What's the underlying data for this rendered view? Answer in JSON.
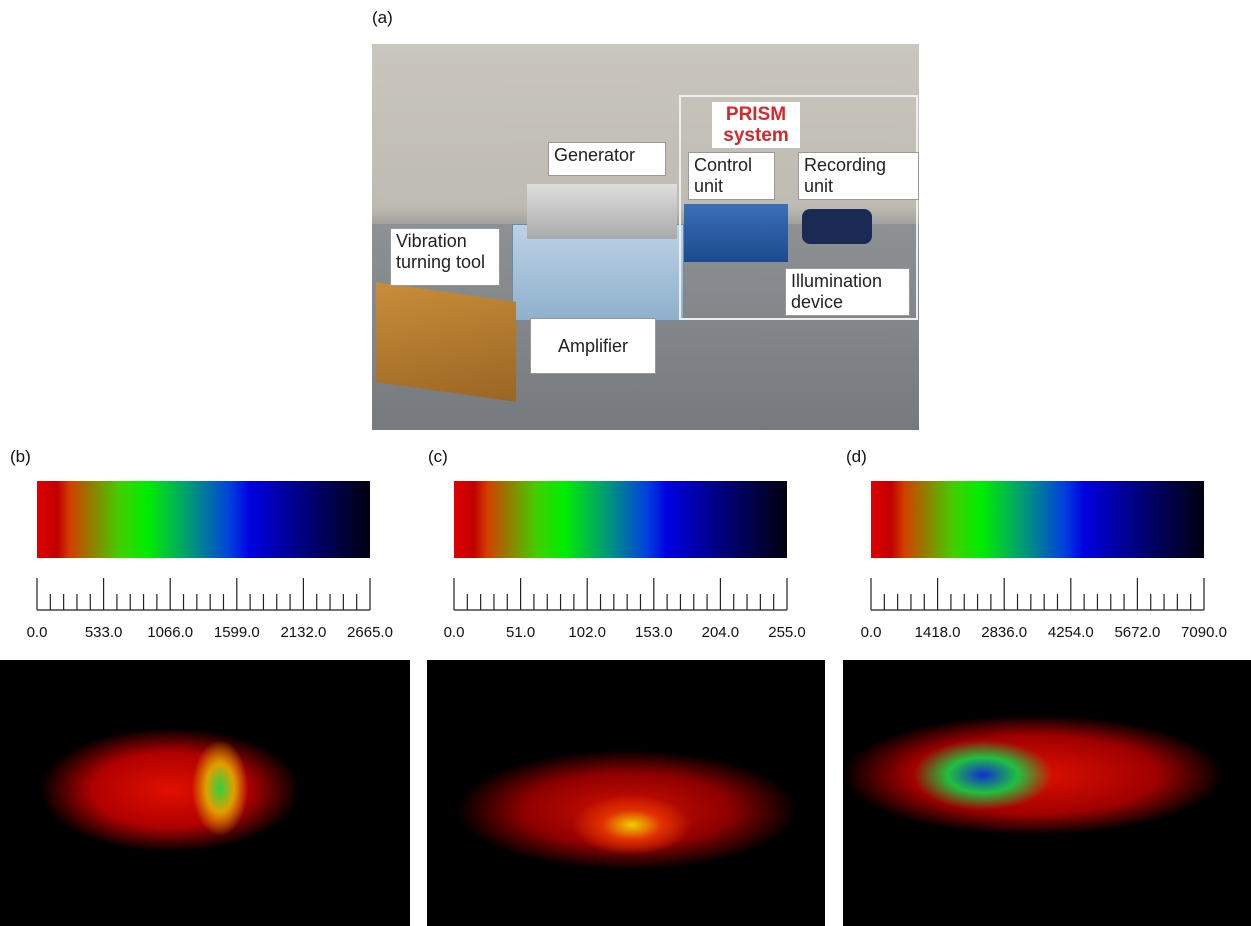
{
  "figure": {
    "panel_a": {
      "label": "(a)",
      "annotations": {
        "generator": "Generator",
        "vibration_tool": "Vibration turning tool",
        "amplifier": "Amplifier",
        "prism": "PRISM system",
        "control_unit": "Control unit",
        "recording_unit": "Recording unit",
        "illumination_device": "Illumination device"
      }
    },
    "panels": [
      {
        "label": "(b)",
        "scale_labels": [
          "0.0",
          "533.0",
          "1066.0",
          "1599.0",
          "2132.0",
          "2665.0"
        ]
      },
      {
        "label": "(c)",
        "scale_labels": [
          "0.0",
          "51.0",
          "102.0",
          "153.0",
          "204.0",
          "255.0"
        ]
      },
      {
        "label": "(d)",
        "scale_labels": [
          "0.0",
          "1418.0",
          "2836.0",
          "4254.0",
          "5672.0",
          "7090.0"
        ]
      }
    ]
  }
}
